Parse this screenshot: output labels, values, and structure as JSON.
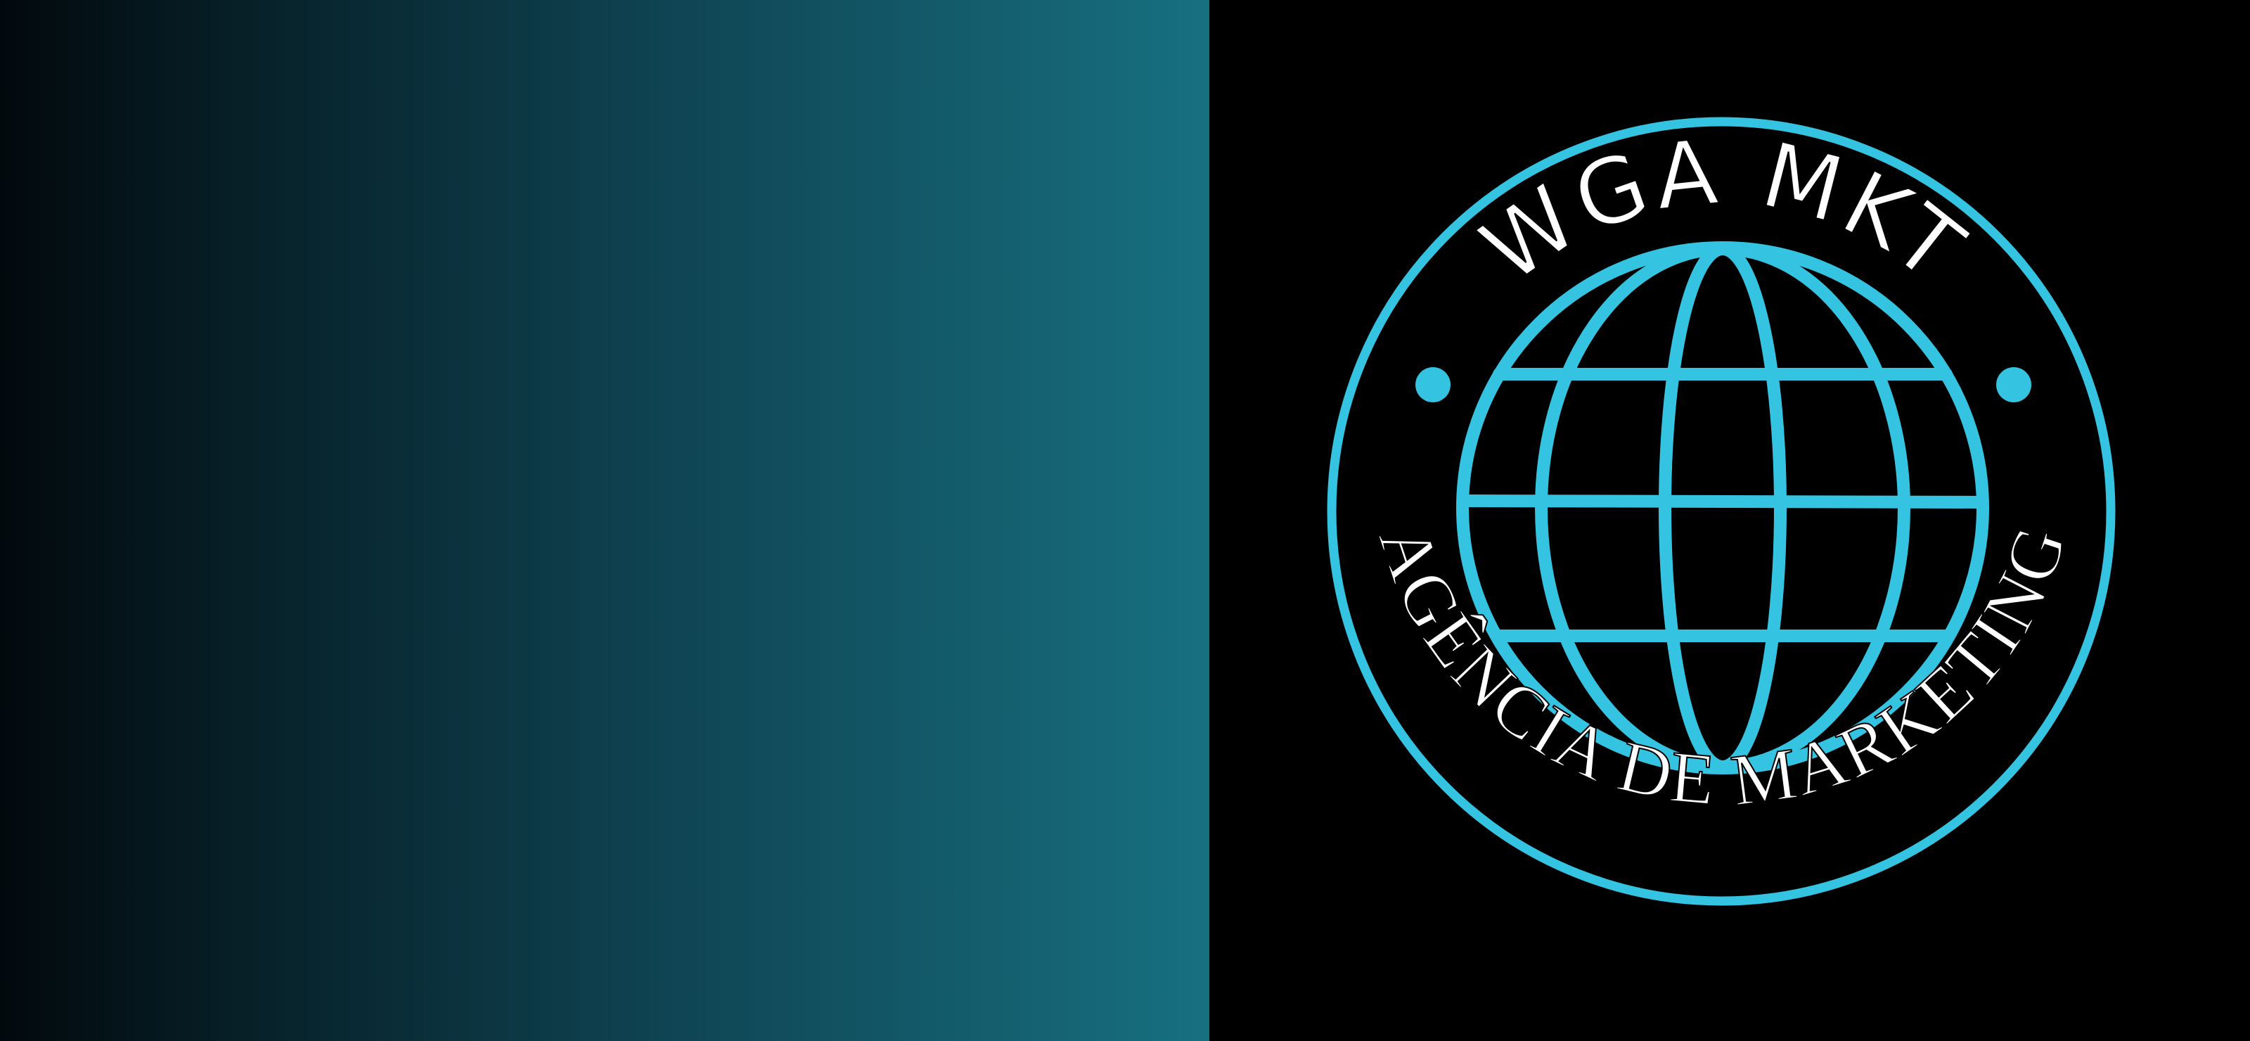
{
  "logo": {
    "top_text": "WGA MKT",
    "bottom_text": "AGÊNCIA DE MARKETING"
  },
  "colors": {
    "accent": "#34c3e0",
    "text": "#ffffff",
    "background": "#000000",
    "gradient_start": "#02090d",
    "gradient_end": "#177080"
  },
  "icons": {
    "globe": "globe-icon",
    "left_dot": "dot-icon",
    "right_dot": "dot-icon"
  }
}
